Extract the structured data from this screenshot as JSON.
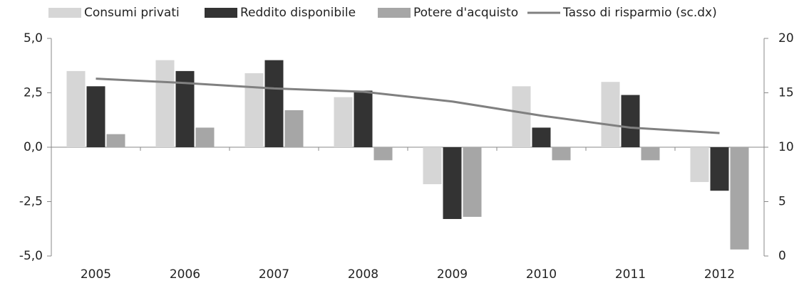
{
  "chart_data": {
    "type": "bar",
    "categories": [
      "2005",
      "2006",
      "2007",
      "2008",
      "2009",
      "2010",
      "2011",
      "2012"
    ],
    "series": [
      {
        "name": "Consumi privati",
        "color": "#d6d6d6",
        "values": [
          3.5,
          4.0,
          3.4,
          2.3,
          -1.7,
          2.8,
          3.0,
          -1.6
        ]
      },
      {
        "name": "Reddito disponibile",
        "color": "#333333",
        "values": [
          2.8,
          3.5,
          4.0,
          2.6,
          -3.3,
          0.9,
          2.4,
          -2.0
        ]
      },
      {
        "name": "Potere d'acquisto",
        "color": "#a6a6a6",
        "values": [
          0.6,
          0.9,
          1.7,
          -0.6,
          -3.2,
          -0.6,
          -0.6,
          -4.7
        ]
      },
      {
        "name": "Tasso di risparmio (sc.dx)",
        "color": "#808080",
        "type": "line",
        "axis": "y2",
        "values": [
          16.3,
          15.9,
          15.4,
          15.1,
          14.2,
          12.9,
          11.8,
          11.3
        ]
      }
    ],
    "ylim": [
      -5,
      5
    ],
    "yticks": [
      {
        "value": -5,
        "label": "-5,0"
      },
      {
        "value": -2.5,
        "label": "-2,5"
      },
      {
        "value": 0,
        "label": "0,0"
      },
      {
        "value": 2.5,
        "label": "2,5"
      },
      {
        "value": 5,
        "label": "5,0"
      }
    ],
    "y2lim": [
      0,
      20
    ],
    "y2ticks": [
      0,
      5,
      10,
      15,
      20
    ],
    "legend": "top"
  }
}
